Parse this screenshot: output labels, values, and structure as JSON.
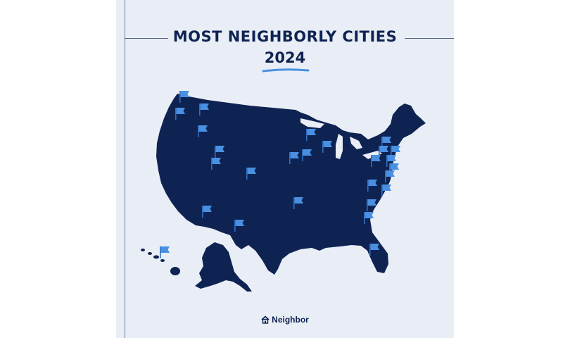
{
  "header": {
    "title": "MOST NEIGHBORLY CITIES",
    "year": "2024"
  },
  "footer": {
    "brand": "Neighbor",
    "logo_icon": "house-icon"
  },
  "colors": {
    "background": "#e9eef6",
    "map_fill": "#0f2352",
    "flag": "#4a90e2",
    "text": "#0f2352"
  },
  "map": {
    "region": "United States",
    "flag_icon": "flag-icon",
    "flag_count": 31
  }
}
